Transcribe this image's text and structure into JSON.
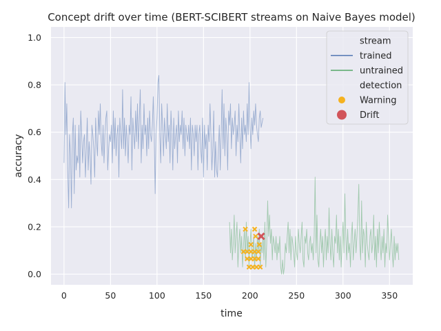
{
  "chart_data": {
    "type": "line",
    "title": "Concept drift over time (BERT-SCIBERT streams on Naive Bayes model)",
    "xlabel": "time",
    "ylabel": "accuracy",
    "xlim": [
      -14,
      375
    ],
    "ylim": [
      -0.045,
      1.045
    ],
    "xticks": [
      0,
      50,
      100,
      150,
      200,
      250,
      300,
      350
    ],
    "yticks": [
      0.0,
      0.2,
      0.4,
      0.6,
      0.8,
      1.0
    ],
    "grid": true,
    "legend_position": "top-right",
    "legend": {
      "groups": [
        {
          "title": "stream",
          "entries": [
            {
              "label": "trained",
              "kind": "line",
              "color": "#4c72b0"
            },
            {
              "label": "untrained",
              "kind": "line",
              "color": "#55a868"
            }
          ]
        },
        {
          "title": "detection",
          "entries": [
            {
              "label": "Warning",
              "kind": "dot",
              "color": "#f5b21f"
            },
            {
              "label": "Drift",
              "kind": "dot",
              "color": "#d1545a"
            }
          ]
        }
      ]
    },
    "series": [
      {
        "name": "trained",
        "color": "#4c72b0",
        "x_start": 0,
        "values": [
          0.47,
          0.81,
          0.59,
          0.72,
          0.44,
          0.28,
          0.59,
          0.5,
          0.28,
          0.59,
          0.66,
          0.34,
          0.63,
          0.44,
          0.5,
          0.47,
          0.63,
          0.41,
          0.69,
          0.59,
          0.47,
          0.56,
          0.59,
          0.41,
          0.53,
          0.66,
          0.44,
          0.56,
          0.5,
          0.38,
          0.63,
          0.59,
          0.53,
          0.41,
          0.66,
          0.56,
          0.5,
          0.69,
          0.59,
          0.72,
          0.56,
          0.5,
          0.63,
          0.47,
          0.59,
          0.66,
          0.69,
          0.44,
          0.53,
          0.59,
          0.56,
          0.63,
          0.47,
          0.69,
          0.53,
          0.66,
          0.5,
          0.59,
          0.63,
          0.41,
          0.66,
          0.59,
          0.53,
          0.78,
          0.53,
          0.66,
          0.5,
          0.63,
          0.56,
          0.47,
          0.63,
          0.59,
          0.75,
          0.44,
          0.66,
          0.59,
          0.53,
          0.69,
          0.56,
          0.72,
          0.53,
          0.66,
          0.78,
          0.47,
          0.63,
          0.53,
          0.72,
          0.59,
          0.63,
          0.5,
          0.66,
          0.53,
          0.69,
          0.59,
          0.56,
          0.63,
          0.75,
          0.59,
          0.34,
          0.59,
          0.66,
          0.81,
          0.84,
          0.59,
          0.47,
          0.72,
          0.63,
          0.5,
          0.66,
          0.59,
          0.53,
          0.72,
          0.56,
          0.63,
          0.47,
          0.69,
          0.59,
          0.44,
          0.66,
          0.53,
          0.59,
          0.63,
          0.47,
          0.69,
          0.56,
          0.63,
          0.59,
          0.69,
          0.53,
          0.66,
          0.5,
          0.63,
          0.59,
          0.56,
          0.63,
          0.53,
          0.66,
          0.44,
          0.63,
          0.59,
          0.5,
          0.63,
          0.56,
          0.63,
          0.44,
          0.59,
          0.63,
          0.53,
          0.47,
          0.66,
          0.41,
          0.63,
          0.53,
          0.59,
          0.44,
          0.63,
          0.56,
          0.72,
          0.59,
          0.44,
          0.53,
          0.69,
          0.41,
          0.56,
          0.44,
          0.41,
          0.53,
          0.63,
          0.44,
          0.59,
          0.78,
          0.53,
          0.72,
          0.5,
          0.66,
          0.59,
          0.44,
          0.69,
          0.63,
          0.72,
          0.53,
          0.66,
          0.59,
          0.63,
          0.69,
          0.5,
          0.63,
          0.56,
          0.72,
          0.59,
          0.47,
          0.66,
          0.53,
          0.69,
          0.59,
          0.63,
          0.56,
          0.72,
          0.59,
          0.81,
          0.63,
          0.53,
          0.66,
          0.59,
          0.69,
          0.63,
          0.72,
          0.63,
          0.59,
          0.56,
          0.66,
          0.69,
          0.62,
          0.64,
          0.66
        ]
      },
      {
        "name": "untrained",
        "color": "#55a868",
        "x_start": 178,
        "values": [
          0.22,
          0.09,
          0.19,
          0.06,
          0.13,
          0.25,
          0.09,
          0.16,
          0.22,
          0.03,
          0.13,
          0.19,
          0.09,
          0.16,
          0.03,
          0.12,
          0.19,
          0.06,
          0.22,
          0.09,
          0.16,
          0.03,
          0.13,
          0.19,
          0.06,
          0.09,
          0.16,
          0.03,
          0.13,
          0.06,
          0.16,
          0.09,
          0.19,
          0.03,
          0.13,
          0.09,
          0.16,
          0.06,
          0.22,
          0.03,
          0.13,
          0.31,
          0.16,
          0.25,
          0.13,
          0.19,
          0.06,
          0.16,
          0.13,
          0.09,
          0.16,
          0.06,
          0.13,
          0.09,
          0.16,
          0.03,
          0.0,
          0.06,
          0.0,
          0.03,
          0.13,
          0.09,
          0.16,
          0.22,
          0.09,
          0.19,
          0.06,
          0.16,
          0.13,
          0.09,
          0.03,
          0.16,
          0.09,
          0.06,
          0.19,
          0.13,
          0.09,
          0.16,
          0.22,
          0.06,
          0.03,
          0.16,
          0.13,
          0.19,
          0.09,
          0.06,
          0.13,
          0.16,
          0.09,
          0.13,
          0.06,
          0.16,
          0.41,
          0.09,
          0.25,
          0.06,
          0.03,
          0.13,
          0.19,
          0.09,
          0.16,
          0.03,
          0.13,
          0.19,
          0.06,
          0.16,
          0.09,
          0.28,
          0.13,
          0.06,
          0.19,
          0.09,
          0.03,
          0.16,
          0.13,
          0.25,
          0.09,
          0.19,
          0.06,
          0.16,
          0.03,
          0.13,
          0.22,
          0.09,
          0.34,
          0.16,
          0.06,
          0.19,
          0.09,
          0.13,
          0.03,
          0.16,
          0.22,
          0.06,
          0.13,
          0.19,
          0.09,
          0.16,
          0.25,
          0.38,
          0.13,
          0.06,
          0.31,
          0.09,
          0.19,
          0.16,
          0.03,
          0.22,
          0.13,
          0.09,
          0.06,
          0.16,
          0.19,
          0.09,
          0.13,
          0.25,
          0.06,
          0.16,
          0.03,
          0.19,
          0.09,
          0.22,
          0.13,
          0.06,
          0.16,
          0.09,
          0.19,
          0.03,
          0.13,
          0.09,
          0.25,
          0.16,
          0.06,
          0.13,
          0.19,
          0.09,
          0.03,
          0.16,
          0.06,
          0.13,
          0.09,
          0.13,
          0.06
        ]
      }
    ],
    "warnings": [
      {
        "x": 195,
        "y": 0.19
      },
      {
        "x": 205,
        "y": 0.19
      },
      {
        "x": 206,
        "y": 0.16
      },
      {
        "x": 201,
        "y": 0.125
      },
      {
        "x": 210,
        "y": 0.125
      },
      {
        "x": 193,
        "y": 0.095
      },
      {
        "x": 197,
        "y": 0.095
      },
      {
        "x": 201,
        "y": 0.095
      },
      {
        "x": 205,
        "y": 0.095
      },
      {
        "x": 209,
        "y": 0.095
      },
      {
        "x": 197,
        "y": 0.065
      },
      {
        "x": 201,
        "y": 0.065
      },
      {
        "x": 205,
        "y": 0.065
      },
      {
        "x": 209,
        "y": 0.065
      },
      {
        "x": 199,
        "y": 0.03
      },
      {
        "x": 203,
        "y": 0.03
      },
      {
        "x": 207,
        "y": 0.03
      },
      {
        "x": 211,
        "y": 0.03
      }
    ],
    "drifts": [
      {
        "x": 212,
        "y": 0.16
      }
    ]
  }
}
